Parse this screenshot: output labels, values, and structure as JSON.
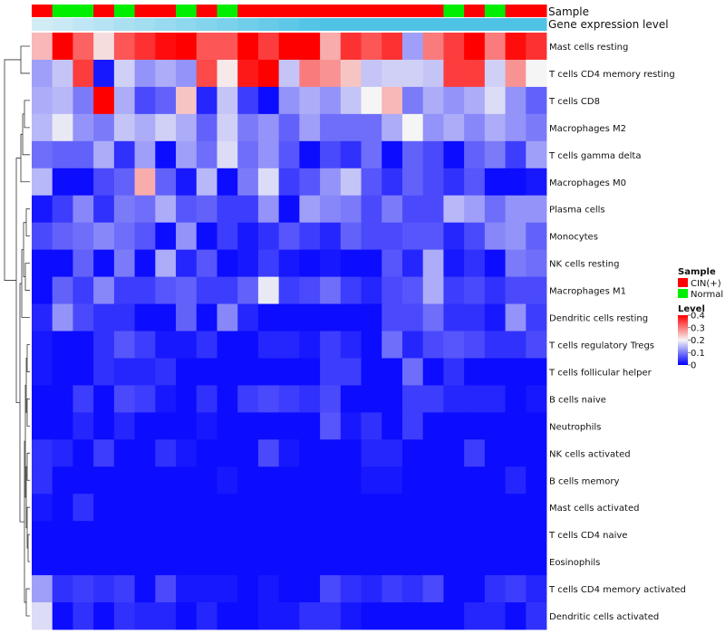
{
  "chart_data": {
    "type": "heatmap",
    "column_annotations": [
      {
        "name": "Sample",
        "values": [
          "CIN(+)",
          "Normal",
          "Normal",
          "CIN(+)",
          "Normal",
          "CIN(+)",
          "CIN(+)",
          "Normal",
          "CIN(+)",
          "Normal",
          "CIN(+)",
          "CIN(+)",
          "CIN(+)",
          "CIN(+)",
          "CIN(+)",
          "CIN(+)",
          "CIN(+)",
          "CIN(+)",
          "CIN(+)",
          "CIN(+)",
          "Normal",
          "CIN(+)",
          "Normal",
          "CIN(+)",
          "CIN(+)"
        ]
      },
      {
        "name": "Gene expression level"
      }
    ],
    "rows": [
      "Mast cells resting",
      "T cells CD4 memory resting",
      "T cells CD8",
      "Macrophages M2",
      "T cells gamma delta",
      "Macrophages M0",
      "Plasma cells",
      "Monocytes",
      "NK cells resting",
      "Macrophages M1",
      "Dendritic cells resting",
      "T cells regulatory  Tregs",
      "T cells follicular helper",
      "B cells naive",
      "Neutrophils",
      "NK cells activated",
      "B cells memory",
      "Mast cells activated",
      "T cells CD4 naive",
      "Eosinophils",
      "T cells CD4 memory activated",
      "Dendritic cells activated"
    ],
    "values": [
      [
        0.25,
        0.4,
        0.32,
        0.22,
        0.33,
        0.36,
        0.39,
        0.4,
        0.33,
        0.33,
        0.4,
        0.35,
        0.4,
        0.4,
        0.26,
        0.36,
        0.33,
        0.36,
        0.13,
        0.3,
        0.35,
        0.4,
        0.3,
        0.39,
        0.36
      ],
      [
        0.13,
        0.16,
        0.35,
        0.02,
        0.17,
        0.12,
        0.14,
        0.12,
        0.34,
        0.21,
        0.38,
        0.4,
        0.16,
        0.3,
        0.28,
        0.24,
        0.16,
        0.17,
        0.17,
        0.16,
        0.35,
        0.35,
        0.17,
        0.28,
        0.2
      ],
      [
        0.14,
        0.15,
        0.1,
        0.4,
        0.14,
        0.06,
        0.08,
        0.24,
        0.03,
        0.16,
        0.05,
        0.01,
        0.12,
        0.14,
        0.12,
        0.16,
        0.2,
        0.25,
        0.1,
        0.14,
        0.12,
        0.14,
        0.18,
        0.12,
        0.08
      ],
      [
        0.15,
        0.19,
        0.12,
        0.1,
        0.16,
        0.14,
        0.17,
        0.14,
        0.08,
        0.17,
        0.1,
        0.12,
        0.08,
        0.13,
        0.09,
        0.09,
        0.09,
        0.14,
        0.2,
        0.12,
        0.14,
        0.11,
        0.14,
        0.12,
        0.1
      ],
      [
        0.09,
        0.08,
        0.08,
        0.14,
        0.04,
        0.13,
        0.01,
        0.13,
        0.09,
        0.18,
        0.09,
        0.12,
        0.07,
        0.01,
        0.06,
        0.04,
        0.09,
        0.01,
        0.08,
        0.06,
        0.01,
        0.08,
        0.1,
        0.05,
        0.13
      ],
      [
        0.15,
        0.01,
        0.01,
        0.06,
        0.08,
        0.26,
        0.08,
        0.02,
        0.15,
        0.01,
        0.1,
        0.18,
        0.05,
        0.07,
        0.12,
        0.16,
        0.07,
        0.04,
        0.08,
        0.06,
        0.04,
        0.07,
        0.01,
        0.01,
        0.02
      ],
      [
        0.02,
        0.05,
        0.11,
        0.04,
        0.1,
        0.09,
        0.14,
        0.07,
        0.08,
        0.05,
        0.05,
        0.12,
        0.01,
        0.13,
        0.11,
        0.1,
        0.06,
        0.1,
        0.06,
        0.06,
        0.15,
        0.13,
        0.09,
        0.12,
        0.12
      ],
      [
        0.06,
        0.08,
        0.09,
        0.11,
        0.09,
        0.07,
        0.01,
        0.12,
        0.01,
        0.05,
        0.02,
        0.04,
        0.07,
        0.05,
        0.03,
        0.08,
        0.06,
        0.06,
        0.07,
        0.07,
        0.03,
        0.06,
        0.11,
        0.12,
        0.08
      ],
      [
        0.01,
        0.01,
        0.08,
        0.01,
        0.1,
        0.01,
        0.14,
        0.03,
        0.07,
        0.01,
        0.02,
        0.05,
        0.02,
        0.01,
        0.02,
        0.01,
        0.01,
        0.07,
        0.03,
        0.14,
        0.02,
        0.04,
        0.01,
        0.1,
        0.09
      ],
      [
        0.01,
        0.08,
        0.05,
        0.11,
        0.05,
        0.05,
        0.07,
        0.08,
        0.05,
        0.05,
        0.08,
        0.19,
        0.05,
        0.06,
        0.09,
        0.05,
        0.03,
        0.06,
        0.07,
        0.14,
        0.05,
        0.06,
        0.04,
        0.06,
        0.06
      ],
      [
        0.03,
        0.12,
        0.06,
        0.04,
        0.04,
        0.01,
        0.01,
        0.08,
        0.01,
        0.11,
        0.03,
        0.01,
        0.01,
        0.01,
        0.01,
        0.01,
        0.01,
        0.06,
        0.06,
        0.09,
        0.04,
        0.04,
        0.02,
        0.12,
        0.05
      ],
      [
        0.02,
        0.01,
        0.01,
        0.04,
        0.07,
        0.05,
        0.02,
        0.02,
        0.04,
        0.01,
        0.01,
        0.03,
        0.03,
        0.02,
        0.05,
        0.03,
        0.01,
        0.09,
        0.03,
        0.06,
        0.07,
        0.06,
        0.04,
        0.04,
        0.06
      ],
      [
        0.02,
        0.01,
        0.01,
        0.04,
        0.03,
        0.03,
        0.04,
        0.01,
        0.01,
        0.01,
        0.01,
        0.01,
        0.01,
        0.01,
        0.05,
        0.05,
        0.01,
        0.01,
        0.09,
        0.01,
        0.04,
        0.01,
        0.01,
        0.01,
        0.01
      ],
      [
        0.01,
        0.01,
        0.05,
        0.01,
        0.06,
        0.05,
        0.02,
        0.01,
        0.04,
        0.01,
        0.05,
        0.06,
        0.05,
        0.04,
        0.06,
        0.01,
        0.01,
        0.01,
        0.05,
        0.05,
        0.03,
        0.03,
        0.03,
        0.01,
        0.02
      ],
      [
        0.01,
        0.01,
        0.03,
        0.01,
        0.03,
        0.01,
        0.01,
        0.01,
        0.02,
        0.01,
        0.01,
        0.01,
        0.01,
        0.01,
        0.07,
        0.02,
        0.04,
        0.01,
        0.05,
        0.01,
        0.01,
        0.01,
        0.01,
        0.01,
        0.01
      ],
      [
        0.04,
        0.03,
        0.01,
        0.05,
        0.01,
        0.01,
        0.04,
        0.02,
        0.01,
        0.01,
        0.01,
        0.06,
        0.02,
        0.01,
        0.01,
        0.01,
        0.03,
        0.03,
        0.01,
        0.01,
        0.01,
        0.05,
        0.01,
        0.01,
        0.01
      ],
      [
        0.04,
        0.01,
        0.01,
        0.01,
        0.01,
        0.01,
        0.01,
        0.01,
        0.01,
        0.02,
        0.01,
        0.01,
        0.01,
        0.01,
        0.01,
        0.01,
        0.02,
        0.02,
        0.01,
        0.01,
        0.01,
        0.01,
        0.01,
        0.03,
        0.01
      ],
      [
        0.02,
        0.01,
        0.04,
        0.01,
        0.01,
        0.01,
        0.01,
        0.01,
        0.01,
        0.01,
        0.01,
        0.01,
        0.01,
        0.01,
        0.01,
        0.01,
        0.01,
        0.01,
        0.01,
        0.01,
        0.01,
        0.01,
        0.01,
        0.01,
        0.01
      ],
      [
        0.01,
        0.01,
        0.01,
        0.01,
        0.01,
        0.01,
        0.01,
        0.01,
        0.01,
        0.01,
        0.01,
        0.01,
        0.01,
        0.01,
        0.01,
        0.01,
        0.01,
        0.01,
        0.01,
        0.01,
        0.01,
        0.01,
        0.01,
        0.01,
        0.01
      ],
      [
        0.01,
        0.01,
        0.01,
        0.01,
        0.01,
        0.01,
        0.01,
        0.01,
        0.01,
        0.01,
        0.01,
        0.01,
        0.01,
        0.01,
        0.01,
        0.01,
        0.01,
        0.01,
        0.01,
        0.01,
        0.01,
        0.01,
        0.01,
        0.01,
        0.01
      ],
      [
        0.13,
        0.04,
        0.05,
        0.04,
        0.05,
        0.01,
        0.06,
        0.02,
        0.02,
        0.02,
        0.01,
        0.02,
        0.01,
        0.01,
        0.06,
        0.04,
        0.03,
        0.05,
        0.04,
        0.06,
        0.01,
        0.01,
        0.04,
        0.05,
        0.03
      ],
      [
        0.18,
        0.01,
        0.04,
        0.01,
        0.04,
        0.03,
        0.03,
        0.01,
        0.03,
        0.01,
        0.01,
        0.02,
        0.02,
        0.04,
        0.04,
        0.02,
        0.01,
        0.01,
        0.01,
        0.01,
        0.01,
        0.03,
        0.03,
        0.01,
        0.04
      ]
    ],
    "legend": {
      "sample": {
        "title": "Sample",
        "entries": [
          {
            "label": "CIN(+)",
            "color": "#ff0000"
          },
          {
            "label": "Normal",
            "color": "#00ee00"
          }
        ]
      },
      "level": {
        "title": "Level",
        "ticks": [
          "0.4",
          "0.3",
          "0.2",
          "0.1",
          "0"
        ],
        "tick_values": [
          0.4,
          0.3,
          0.2,
          0.1,
          0
        ]
      }
    },
    "color_scale": {
      "low": "#0000ff",
      "mid": "#f5f5f5",
      "high": "#ff0000",
      "min": 0,
      "max": 0.4
    },
    "expression_bar_color": "#4fc3e6",
    "dendrogram": "row"
  }
}
